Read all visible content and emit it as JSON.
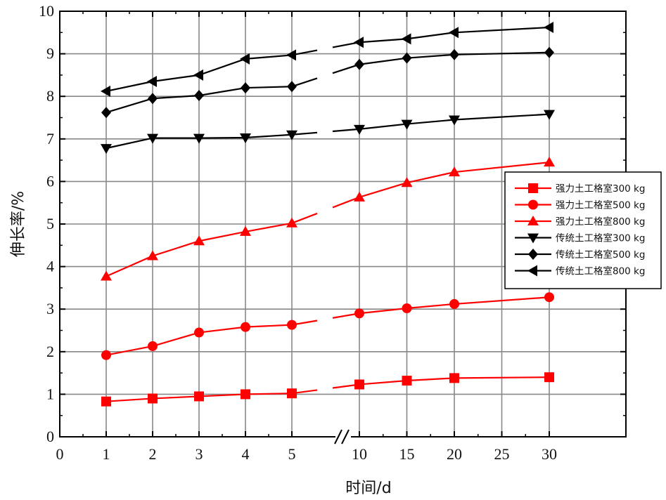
{
  "chart_data": {
    "type": "line",
    "title": "",
    "xlabel": "时间/d",
    "ylabel": "伸长率/%",
    "ylim": [
      0,
      10
    ],
    "y_ticks": [
      "0",
      "1",
      "2",
      "3",
      "4",
      "5",
      "6",
      "7",
      "8",
      "9",
      "10"
    ],
    "x_tick_labels": [
      "0",
      "1",
      "2",
      "3",
      "4",
      "5",
      "10",
      "15",
      "20",
      "25",
      "30"
    ],
    "x": [
      1,
      2,
      3,
      4,
      5,
      10,
      15,
      20,
      30
    ],
    "axis_break": "//",
    "grid": true,
    "legend_position": "right",
    "series": [
      {
        "name": "强力土工格室300 kg",
        "color": "#ff0000",
        "marker": "square",
        "values": [
          0.83,
          0.9,
          0.95,
          1.0,
          1.02,
          1.23,
          1.32,
          1.38,
          1.4
        ]
      },
      {
        "name": "强力土工格室500 kg",
        "color": "#ff0000",
        "marker": "circle",
        "values": [
          1.92,
          2.13,
          2.45,
          2.58,
          2.63,
          2.9,
          3.02,
          3.12,
          3.28
        ]
      },
      {
        "name": "强力土工格室800 kg",
        "color": "#ff0000",
        "marker": "triangle-up",
        "values": [
          3.77,
          4.25,
          4.6,
          4.82,
          5.02,
          5.63,
          5.97,
          6.22,
          6.45
        ]
      },
      {
        "name": "传统土工格室300 kg",
        "color": "#000000",
        "marker": "triangle-down",
        "values": [
          6.78,
          7.02,
          7.02,
          7.03,
          7.1,
          7.23,
          7.35,
          7.45,
          7.58
        ]
      },
      {
        "name": "传统土工格室500 kg",
        "color": "#000000",
        "marker": "diamond",
        "values": [
          7.62,
          7.95,
          8.02,
          8.2,
          8.23,
          8.75,
          8.9,
          8.98,
          9.03
        ]
      },
      {
        "name": "传统土工格室800 kg",
        "color": "#000000",
        "marker": "triangle-left",
        "values": [
          8.12,
          8.35,
          8.5,
          8.88,
          8.97,
          9.27,
          9.35,
          9.5,
          9.62
        ]
      }
    ]
  }
}
